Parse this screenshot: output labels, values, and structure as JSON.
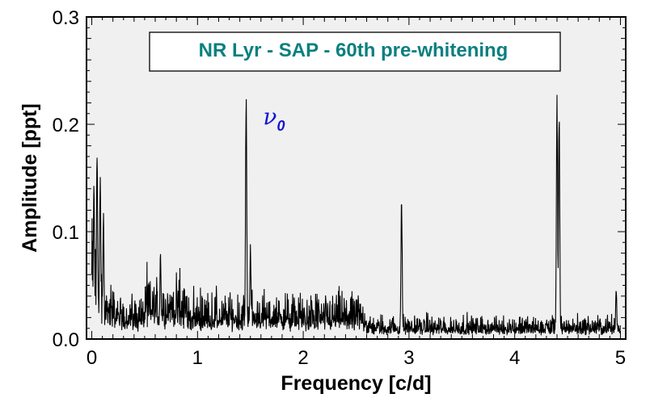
{
  "chart_data": {
    "type": "line",
    "title": "NR Lyr - SAP - 60th pre-whitening",
    "xlabel": "Frequency [c/d]",
    "ylabel": "Amplitude [ppt]",
    "xlim": [
      -0.05,
      5.05
    ],
    "ylim": [
      0.0,
      0.3
    ],
    "x_ticks": [
      "0",
      "1",
      "2",
      "3",
      "4",
      "5"
    ],
    "y_ticks": [
      "0.0",
      "0.1",
      "0.2",
      "0.3"
    ],
    "grid": false,
    "background": "#f0f0f0",
    "line_color": "#000000",
    "title_color": "#0b7f7f",
    "annotation": {
      "text": "ν",
      "subscript": "0",
      "x": 1.62,
      "y": 0.2,
      "color": "#1414d2"
    },
    "series": [
      {
        "peaks": [
          {
            "x": 0.02,
            "y": 0.145
          },
          {
            "x": 0.05,
            "y": 0.185
          },
          {
            "x": 0.08,
            "y": 0.165
          },
          {
            "x": 0.11,
            "y": 0.12
          },
          {
            "x": 0.65,
            "y": 0.085
          },
          {
            "x": 1.46,
            "y": 0.235
          },
          {
            "x": 1.5,
            "y": 0.09
          },
          {
            "x": 2.93,
            "y": 0.138
          },
          {
            "x": 4.4,
            "y": 0.24
          },
          {
            "x": 4.42,
            "y": 0.218
          },
          {
            "x": 4.96,
            "y": 0.047
          }
        ],
        "noise_level_low": 0.025,
        "noise_level_high": 0.013,
        "noise_transition": 2.6
      }
    ]
  }
}
